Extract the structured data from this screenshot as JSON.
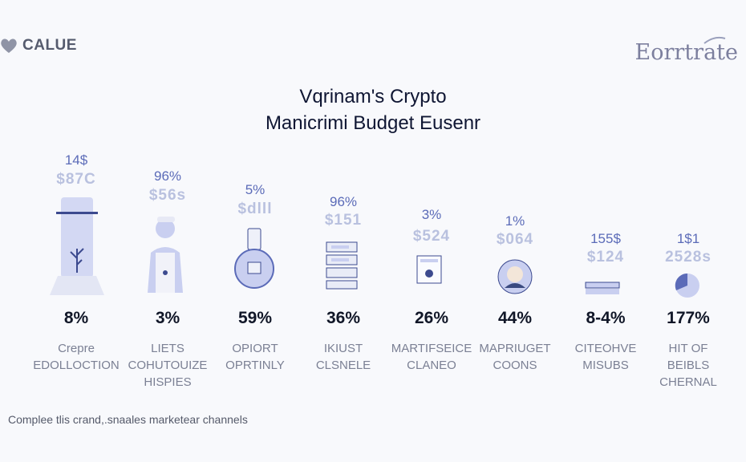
{
  "brand": {
    "left_text": "CALUE",
    "left_icon": "heart-icon",
    "right_text": "Eorrtrate"
  },
  "chart_data": {
    "type": "table",
    "title": "Vqrinam's Crypto",
    "subtitle": "Manicrimi Budget Eusenr",
    "columns": [
      {
        "top_pct": "14$",
        "top_amount": "$87C",
        "percent": "8%",
        "label_lines": [
          "Crepre",
          "EDOLLOCTION"
        ],
        "icon": "tower-plant-icon"
      },
      {
        "top_pct": "96%",
        "top_amount": "$56s",
        "percent": "3%",
        "label_lines": [
          "LIETS",
          "COHUTOUIZE",
          "HISPIES"
        ],
        "icon": "person-icon"
      },
      {
        "top_pct": "5%",
        "top_amount": "$dlll",
        "percent": "59%",
        "label_lines": [
          "OPIORT",
          "OPRTINLY"
        ],
        "icon": "globe-device-icon"
      },
      {
        "top_pct": "96%",
        "top_amount": "$151",
        "percent": "36%",
        "label_lines": [
          "IKIUST",
          "CLSNELE"
        ],
        "icon": "server-stack-icon"
      },
      {
        "top_pct": "3%",
        "top_amount": "$524",
        "percent": "26%",
        "label_lines": [
          "MARTIFSEICE",
          "CLANEO"
        ],
        "icon": "document-icon"
      },
      {
        "top_pct": "1%",
        "top_amount": "$064",
        "percent": "44%",
        "label_lines": [
          "MAPRIUGET",
          "COONS"
        ],
        "icon": "avatar-icon"
      },
      {
        "top_pct": "155$",
        "top_amount": "$124",
        "percent": "8-4%",
        "label_lines": [
          "CITEOHVE",
          "MISUBS"
        ],
        "icon": "stack-icon"
      },
      {
        "top_pct": "1$1",
        "top_amount": "2528s",
        "percent": "177%",
        "label_lines": [
          "HIT OF",
          "BEIBLS",
          "CHERNAL"
        ],
        "icon": "pie-icon"
      }
    ]
  },
  "footnote": "Complee tlis crand,.snaales marketear channels",
  "colors": {
    "accent": "#5b6bb8",
    "illustration_fill": "#c9cff0",
    "illustration_dark": "#3c4a8f",
    "muted": "#b9c1df"
  }
}
